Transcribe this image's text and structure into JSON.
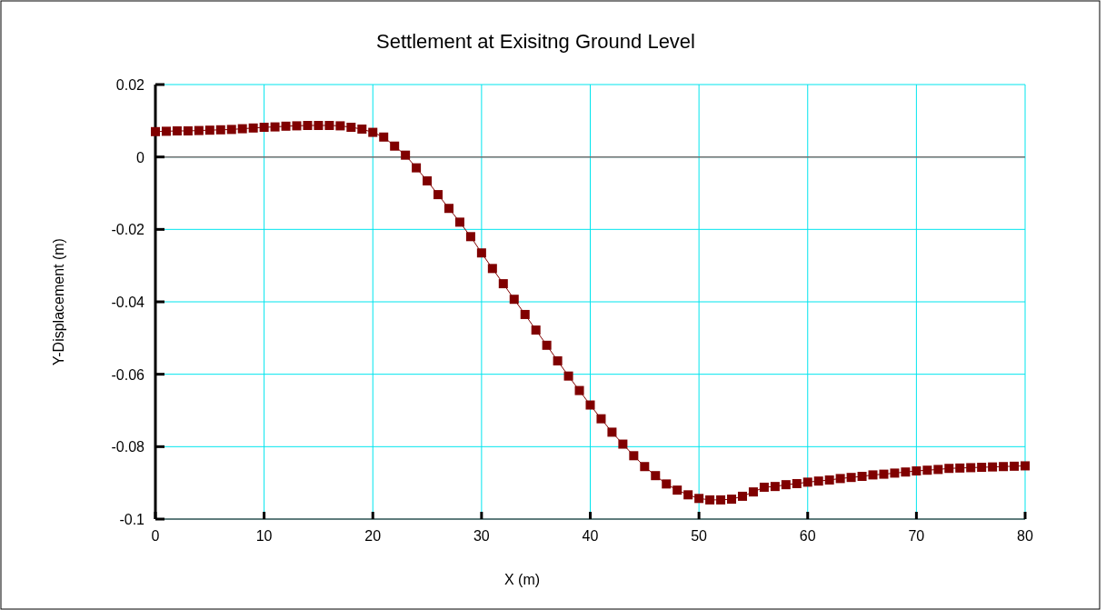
{
  "chart_data": {
    "type": "line",
    "title": "Settlement at Exisitng Ground Level",
    "xlabel": "X (m)",
    "ylabel": "Y-Displacement (m)",
    "x": [
      0,
      1,
      2,
      3,
      4,
      5,
      6,
      7,
      8,
      9,
      10,
      11,
      12,
      13,
      14,
      15,
      16,
      17,
      18,
      19,
      20,
      21,
      22,
      23,
      24,
      25,
      26,
      27,
      28,
      29,
      30,
      31,
      32,
      33,
      34,
      35,
      36,
      37,
      38,
      39,
      40,
      41,
      42,
      43,
      44,
      45,
      46,
      47,
      48,
      49,
      50,
      51,
      52,
      53,
      54,
      55,
      56,
      57,
      58,
      59,
      60,
      61,
      62,
      63,
      64,
      65,
      66,
      67,
      68,
      69,
      70,
      71,
      72,
      73,
      74,
      75,
      76,
      77,
      78,
      79,
      80
    ],
    "series": [
      {
        "color": "#800000",
        "values": [
          0.007,
          0.0071,
          0.0072,
          0.0072,
          0.0073,
          0.0074,
          0.0075,
          0.0076,
          0.0078,
          0.008,
          0.0082,
          0.0083,
          0.0085,
          0.0086,
          0.0087,
          0.0087,
          0.0087,
          0.0086,
          0.0082,
          0.0077,
          0.0068,
          0.0055,
          0.003,
          0.0005,
          -0.003,
          -0.0066,
          -0.0104,
          -0.0142,
          -0.018,
          -0.022,
          -0.0265,
          -0.0308,
          -0.035,
          -0.0393,
          -0.0435,
          -0.0478,
          -0.052,
          -0.0563,
          -0.0605,
          -0.0645,
          -0.0685,
          -0.0723,
          -0.076,
          -0.0793,
          -0.0825,
          -0.0855,
          -0.088,
          -0.0903,
          -0.092,
          -0.0933,
          -0.0943,
          -0.0947,
          -0.0947,
          -0.0945,
          -0.0937,
          -0.0925,
          -0.0912,
          -0.091,
          -0.0905,
          -0.0902,
          -0.0898,
          -0.0895,
          -0.0892,
          -0.0888,
          -0.0885,
          -0.0882,
          -0.0878,
          -0.0876,
          -0.0873,
          -0.087,
          -0.0867,
          -0.0865,
          -0.0863,
          -0.086,
          -0.0859,
          -0.0858,
          -0.0857,
          -0.0856,
          -0.0855,
          -0.0854,
          -0.0853
        ]
      }
    ],
    "xlim": [
      0,
      80
    ],
    "xticks": [
      0,
      10,
      20,
      30,
      40,
      50,
      60,
      70,
      80
    ],
    "ylim": [
      -0.1,
      0.02
    ],
    "yticks": [
      -0.1,
      -0.08,
      -0.06,
      -0.04,
      -0.02,
      0,
      0.02
    ],
    "ref_lines": [
      {
        "axis": "y",
        "value": 0,
        "color": "#707070"
      }
    ],
    "grid": true,
    "marker": "square",
    "line_style": "solid"
  }
}
